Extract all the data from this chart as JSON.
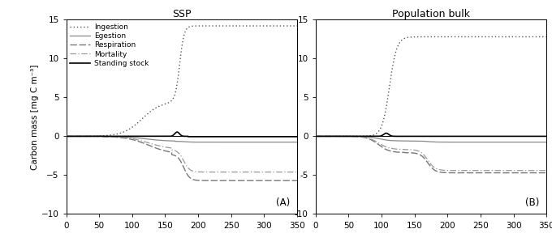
{
  "title_left": "SSP",
  "title_right": "Population bulk",
  "ylabel": "Carbon mass [mg C m⁻³]",
  "xlim": [
    0,
    350
  ],
  "ylim": [
    -10,
    15
  ],
  "yticks": [
    -10,
    -5,
    0,
    5,
    10,
    15
  ],
  "xticks": [
    0,
    50,
    100,
    150,
    200,
    250,
    300,
    350
  ],
  "label_A": "(A)",
  "label_B": "(B)",
  "legend_labels": [
    "Ingestion",
    "Egestion",
    "Respiration",
    "Mortality",
    "Standing stock"
  ],
  "line_colors_A": [
    "#555555",
    "#888888",
    "#777777",
    "#999999",
    "#000000"
  ],
  "line_colors_B": [
    "#555555",
    "#888888",
    "#777777",
    "#999999",
    "#000000"
  ],
  "line_widths": [
    1.0,
    0.9,
    1.0,
    0.9,
    1.2
  ],
  "background_color": "#ffffff"
}
